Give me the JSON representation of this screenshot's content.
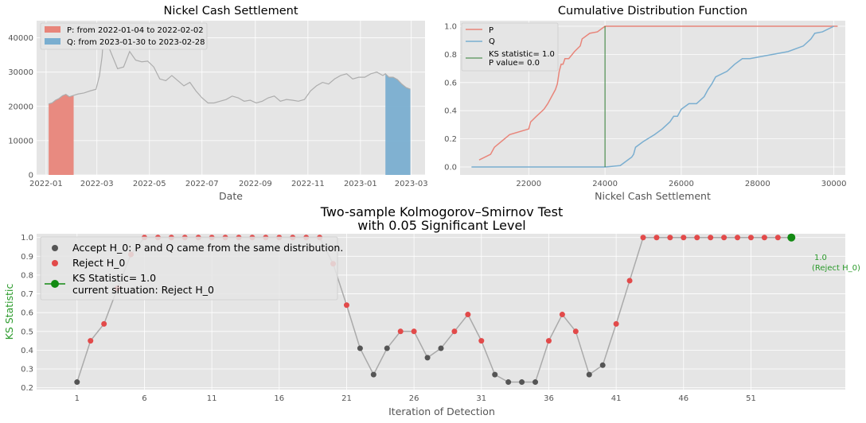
{
  "colors": {
    "panel_bg": "#e5e5e5",
    "grid": "#ffffff",
    "price_line": "#adadad",
    "p": "#e8857a",
    "q": "#7aaed0",
    "ks_line": "#2e7d32",
    "accept": "#555555",
    "reject": "#e24a4a",
    "current": "#138a13",
    "iteration_line": "#aaaaaa",
    "green_text": "#2a9a2a"
  },
  "chart_data": [
    {
      "type": "area",
      "title": "Nickel Cash Settlement",
      "xlabel": "Date",
      "ylabel": "",
      "ylim": [
        0,
        45000
      ],
      "grid": true,
      "legend": "top-left",
      "x_tick_labels": [
        "2022-01",
        "2022-03",
        "2022-05",
        "2022-07",
        "2022-09",
        "2022-11",
        "2023-01",
        "2023-03"
      ],
      "y_tick_labels": [
        "0",
        "10000",
        "20000",
        "30000",
        "40000"
      ],
      "series": [
        {
          "name": "price",
          "x": [
            "2022-01-04",
            "2022-01-08",
            "2022-01-12",
            "2022-01-16",
            "2022-01-20",
            "2022-01-24",
            "2022-01-28",
            "2022-02-02",
            "2022-02-07",
            "2022-02-14",
            "2022-02-21",
            "2022-02-28",
            "2022-03-04",
            "2022-03-07",
            "2022-03-09",
            "2022-03-16",
            "2022-03-25",
            "2022-04-01",
            "2022-04-08",
            "2022-04-15",
            "2022-04-22",
            "2022-04-29",
            "2022-05-06",
            "2022-05-13",
            "2022-05-20",
            "2022-05-27",
            "2022-06-03",
            "2022-06-10",
            "2022-06-17",
            "2022-06-24",
            "2022-07-01",
            "2022-07-08",
            "2022-07-15",
            "2022-07-22",
            "2022-07-29",
            "2022-08-05",
            "2022-08-12",
            "2022-08-19",
            "2022-08-26",
            "2022-09-02",
            "2022-09-09",
            "2022-09-16",
            "2022-09-23",
            "2022-09-30",
            "2022-10-07",
            "2022-10-14",
            "2022-10-21",
            "2022-10-28",
            "2022-11-04",
            "2022-11-11",
            "2022-11-18",
            "2022-11-25",
            "2022-12-02",
            "2022-12-09",
            "2022-12-16",
            "2022-12-23",
            "2022-12-30",
            "2023-01-06",
            "2023-01-13",
            "2023-01-20",
            "2023-01-27",
            "2023-01-30",
            "2023-02-03",
            "2023-02-08",
            "2023-02-13",
            "2023-02-18",
            "2023-02-23",
            "2023-02-28"
          ],
          "values": [
            20700,
            21000,
            21800,
            22300,
            23100,
            23500,
            22800,
            23200,
            23600,
            23900,
            24500,
            25000,
            29000,
            34500,
            42000,
            36500,
            31000,
            31500,
            36000,
            33500,
            33000,
            33200,
            31500,
            28000,
            27500,
            29000,
            27500,
            26000,
            27000,
            24500,
            22500,
            21000,
            21000,
            21500,
            22000,
            23000,
            22500,
            21500,
            21800,
            21000,
            21500,
            22500,
            23000,
            21500,
            22000,
            21800,
            21500,
            22000,
            24500,
            26000,
            27000,
            26500,
            28000,
            29000,
            29500,
            28000,
            28500,
            28500,
            29500,
            30000,
            29000,
            29500,
            28500,
            28500,
            27800,
            26500,
            25500,
            25000
          ]
        }
      ],
      "highlights": [
        {
          "name": "P: from 2022-01-04 to 2022-02-02",
          "start": "2022-01-04",
          "end": "2022-02-02"
        },
        {
          "name": "Q: from 2023-01-30 to 2023-02-28",
          "start": "2023-01-30",
          "end": "2023-02-28"
        }
      ]
    },
    {
      "type": "line",
      "title": "Cumulative Distribution Function",
      "xlabel": "Nickel Cash Settlement",
      "ylabel": "",
      "xlim": [
        20200,
        30300
      ],
      "ylim": [
        0.0,
        1.0
      ],
      "grid": true,
      "legend": "top-left",
      "x_tick_labels": [
        "22000",
        "24000",
        "26000",
        "28000",
        "30000"
      ],
      "y_tick_labels": [
        "0.0",
        "0.2",
        "0.4",
        "0.6",
        "0.8",
        "1.0"
      ],
      "series": [
        {
          "name": "P",
          "x": [
            20700,
            21000,
            21100,
            21500,
            22000,
            22050,
            22200,
            22400,
            22500,
            22600,
            22700,
            22750,
            22800,
            22850,
            22900,
            22950,
            23050,
            23200,
            23350,
            23400,
            23600,
            23800,
            23950,
            24000,
            30100
          ],
          "values": [
            0.05,
            0.09,
            0.14,
            0.23,
            0.27,
            0.32,
            0.36,
            0.41,
            0.45,
            0.5,
            0.55,
            0.59,
            0.68,
            0.73,
            0.73,
            0.77,
            0.77,
            0.82,
            0.86,
            0.91,
            0.95,
            0.96,
            0.99,
            1.0,
            1.0
          ]
        },
        {
          "name": "Q",
          "x": [
            20500,
            24000,
            24400,
            24600,
            24700,
            24750,
            24800,
            25000,
            25300,
            25500,
            25700,
            25800,
            25900,
            26000,
            26200,
            26400,
            26600,
            26700,
            26800,
            26900,
            27200,
            27400,
            27600,
            27800,
            28200,
            28800,
            29200,
            29400,
            29500,
            29700,
            30000
          ],
          "values": [
            0.0,
            0.0,
            0.01,
            0.05,
            0.07,
            0.09,
            0.14,
            0.18,
            0.23,
            0.27,
            0.32,
            0.36,
            0.36,
            0.41,
            0.45,
            0.45,
            0.5,
            0.55,
            0.59,
            0.64,
            0.68,
            0.73,
            0.77,
            0.77,
            0.79,
            0.82,
            0.86,
            0.91,
            0.95,
            0.96,
            1.0
          ]
        }
      ],
      "ks_statistic_label": "KS statistic= 1.0",
      "p_value_label": "P value= 0.0",
      "ks_line_x": 24000
    },
    {
      "type": "line",
      "title_line1": "Two-sample Kolmogorov–Smirnov Test",
      "title_line2": "with 0.05 Significant Level",
      "xlabel": "Iteration of Detection",
      "ylabel": "KS Statistic",
      "xlim": [
        -2,
        58
      ],
      "ylim": [
        0.19,
        1.02
      ],
      "grid": true,
      "legend": "top-left",
      "x_tick_values": [
        1,
        6,
        11,
        16,
        21,
        26,
        31,
        36,
        41,
        46,
        51
      ],
      "x_tick_labels": [
        "1",
        "6",
        "11",
        "16",
        "21",
        "26",
        "31",
        "36",
        "41",
        "46",
        "51"
      ],
      "y_tick_labels": [
        "0.2",
        "0.3",
        "0.4",
        "0.5",
        "0.6",
        "0.7",
        "0.8",
        "0.9",
        "1.0"
      ],
      "x": [
        1,
        2,
        3,
        4,
        5,
        6,
        7,
        8,
        9,
        10,
        11,
        12,
        13,
        14,
        15,
        16,
        17,
        18,
        19,
        20,
        21,
        22,
        23,
        24,
        25,
        26,
        27,
        28,
        29,
        30,
        31,
        32,
        33,
        34,
        35,
        36,
        37,
        38,
        39,
        40,
        41,
        42,
        43,
        44,
        45,
        46,
        47,
        48,
        49,
        50,
        51,
        52,
        53,
        54
      ],
      "values": [
        0.23,
        0.45,
        0.54,
        0.73,
        0.91,
        1.0,
        1.0,
        1.0,
        1.0,
        1.0,
        1.0,
        1.0,
        1.0,
        1.0,
        1.0,
        1.0,
        1.0,
        1.0,
        1.0,
        0.86,
        0.64,
        0.41,
        0.27,
        0.41,
        0.5,
        0.5,
        0.36,
        0.41,
        0.5,
        0.59,
        0.45,
        0.27,
        0.23,
        0.23,
        0.23,
        0.45,
        0.59,
        0.5,
        0.27,
        0.32,
        0.54,
        0.77,
        1.0,
        1.0,
        1.0,
        1.0,
        1.0,
        1.0,
        1.0,
        1.0,
        1.0,
        1.0,
        1.0,
        1.0
      ],
      "decision": [
        "accept",
        "reject",
        "reject",
        "reject",
        "reject",
        "reject",
        "reject",
        "reject",
        "reject",
        "reject",
        "reject",
        "reject",
        "reject",
        "reject",
        "reject",
        "reject",
        "reject",
        "reject",
        "reject",
        "reject",
        "reject",
        "accept",
        "accept",
        "accept",
        "reject",
        "reject",
        "accept",
        "accept",
        "reject",
        "reject",
        "reject",
        "accept",
        "accept",
        "accept",
        "accept",
        "reject",
        "reject",
        "reject",
        "accept",
        "accept",
        "reject",
        "reject",
        "reject",
        "reject",
        "reject",
        "reject",
        "reject",
        "reject",
        "reject",
        "reject",
        "reject",
        "reject",
        "reject",
        "current"
      ],
      "legend_entries": {
        "accept": "Accept H_0: P and Q came from the same distribution.",
        "reject": "Reject H_0",
        "current_line1": "KS Statistic= 1.0",
        "current_line2": "current situation: Reject H_0"
      },
      "annotation_line1": "1.0",
      "annotation_line2": "(Reject H_0)"
    }
  ]
}
